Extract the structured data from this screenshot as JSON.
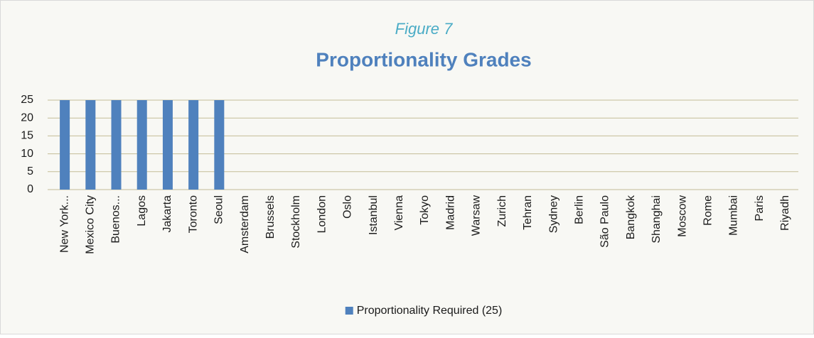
{
  "chart_data": {
    "type": "bar",
    "subtitle": "Figure 7",
    "title": "Proportionality Grades",
    "categories": [
      "New York...",
      "Mexico City",
      "Buenos...",
      "Lagos",
      "Jakarta",
      "Toronto",
      "Seoul",
      "Amsterdam",
      "Brussels",
      "Stockholm",
      "London",
      "Oslo",
      "Istanbul",
      "Vienna",
      "Tokyo",
      "Madrid",
      "Warsaw",
      "Zurich",
      "Tehran",
      "Sydney",
      "Berlin",
      "São Paulo",
      "Bangkok",
      "Shanghai",
      "Moscow",
      "Rome",
      "Mumbai",
      "Paris",
      "Riyadh"
    ],
    "series": [
      {
        "name": "Proportionality Required (25)",
        "color": "#4f81bd",
        "values": [
          25,
          25,
          25,
          25,
          25,
          25,
          25,
          0,
          0,
          0,
          0,
          0,
          0,
          0,
          0,
          0,
          0,
          0,
          0,
          0,
          0,
          0,
          0,
          0,
          0,
          0,
          0,
          0,
          0
        ]
      }
    ],
    "ylim": [
      0,
      25
    ],
    "yticks": [
      0,
      5,
      10,
      15,
      20,
      25
    ],
    "grid": true,
    "legend": "bottom"
  }
}
